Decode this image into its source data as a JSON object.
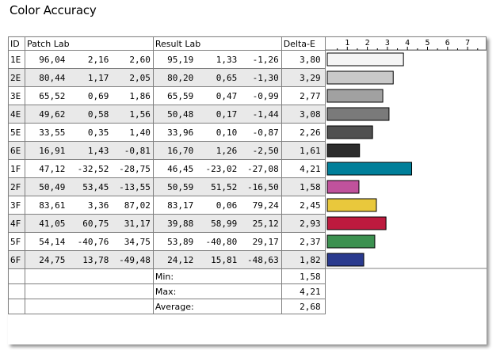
{
  "title": "Color Accuracy",
  "columns": {
    "id": "ID",
    "patch": "Patch Lab",
    "result": "Result Lab",
    "delta": "Delta-E"
  },
  "rows": [
    {
      "id": "1E",
      "patch": [
        "96,04",
        "2,16",
        "2,60"
      ],
      "result": [
        "95,19",
        "1,33",
        "-1,26"
      ],
      "delta": "3,80",
      "color": "#f5f5f5"
    },
    {
      "id": "2E",
      "patch": [
        "80,44",
        "1,17",
        "2,05"
      ],
      "result": [
        "80,20",
        "0,65",
        "-1,30"
      ],
      "delta": "3,29",
      "color": "#c9c9c9"
    },
    {
      "id": "3E",
      "patch": [
        "65,52",
        "0,69",
        "1,86"
      ],
      "result": [
        "65,59",
        "0,47",
        "-0,99"
      ],
      "delta": "2,77",
      "color": "#a1a1a1"
    },
    {
      "id": "4E",
      "patch": [
        "49,62",
        "0,58",
        "1,56"
      ],
      "result": [
        "50,48",
        "0,17",
        "-1,44"
      ],
      "delta": "3,08",
      "color": "#7a7a7a"
    },
    {
      "id": "5E",
      "patch": [
        "33,55",
        "0,35",
        "1,40"
      ],
      "result": [
        "33,96",
        "0,10",
        "-0,87"
      ],
      "delta": "2,26",
      "color": "#505050"
    },
    {
      "id": "6E",
      "patch": [
        "16,91",
        "1,43",
        "-0,81"
      ],
      "result": [
        "16,70",
        "1,26",
        "-2,50"
      ],
      "delta": "1,61",
      "color": "#2c2c2c"
    },
    {
      "id": "1F",
      "patch": [
        "47,12",
        "-32,52",
        "-28,75"
      ],
      "result": [
        "46,45",
        "-23,02",
        "-27,08"
      ],
      "delta": "4,21",
      "color": "#007f9a"
    },
    {
      "id": "2F",
      "patch": [
        "50,49",
        "53,45",
        "-13,55"
      ],
      "result": [
        "50,59",
        "51,52",
        "-16,50"
      ],
      "delta": "1,58",
      "color": "#c0529c"
    },
    {
      "id": "3F",
      "patch": [
        "83,61",
        "3,36",
        "87,02"
      ],
      "result": [
        "83,17",
        "0,06",
        "79,24"
      ],
      "delta": "2,45",
      "color": "#e9c83c"
    },
    {
      "id": "4F",
      "patch": [
        "41,05",
        "60,75",
        "31,17"
      ],
      "result": [
        "39,88",
        "58,99",
        "25,12"
      ],
      "delta": "2,93",
      "color": "#bd1a3e"
    },
    {
      "id": "5F",
      "patch": [
        "54,14",
        "-40,76",
        "34,75"
      ],
      "result": [
        "53,89",
        "-40,80",
        "29,17"
      ],
      "delta": "2,37",
      "color": "#3c9150"
    },
    {
      "id": "6F",
      "patch": [
        "24,75",
        "13,78",
        "-49,48"
      ],
      "result": [
        "24,12",
        "15,81",
        "-48,63"
      ],
      "delta": "1,82",
      "color": "#2a3a8e"
    }
  ],
  "summary": [
    {
      "label": "Min:",
      "value": "1,58"
    },
    {
      "label": "Max:",
      "value": "4,21"
    },
    {
      "label": "Average:",
      "value": "2,68"
    }
  ],
  "chart_data": {
    "type": "bar",
    "orientation": "horizontal",
    "categories": [
      "1E",
      "2E",
      "3E",
      "4E",
      "5E",
      "6E",
      "1F",
      "2F",
      "3F",
      "4F",
      "5F",
      "6F"
    ],
    "values": [
      3.8,
      3.29,
      2.77,
      3.08,
      2.26,
      1.61,
      4.21,
      1.58,
      2.45,
      2.93,
      2.37,
      1.82
    ],
    "xlim": [
      0,
      8
    ],
    "ticks": [
      "1",
      "2",
      "3",
      "4",
      "5",
      "6",
      "7"
    ],
    "colors": [
      "#f5f5f5",
      "#c9c9c9",
      "#a1a1a1",
      "#7a7a7a",
      "#505050",
      "#2c2c2c",
      "#007f9a",
      "#c0529c",
      "#e9c83c",
      "#bd1a3e",
      "#3c9150",
      "#2a3a8e"
    ]
  }
}
